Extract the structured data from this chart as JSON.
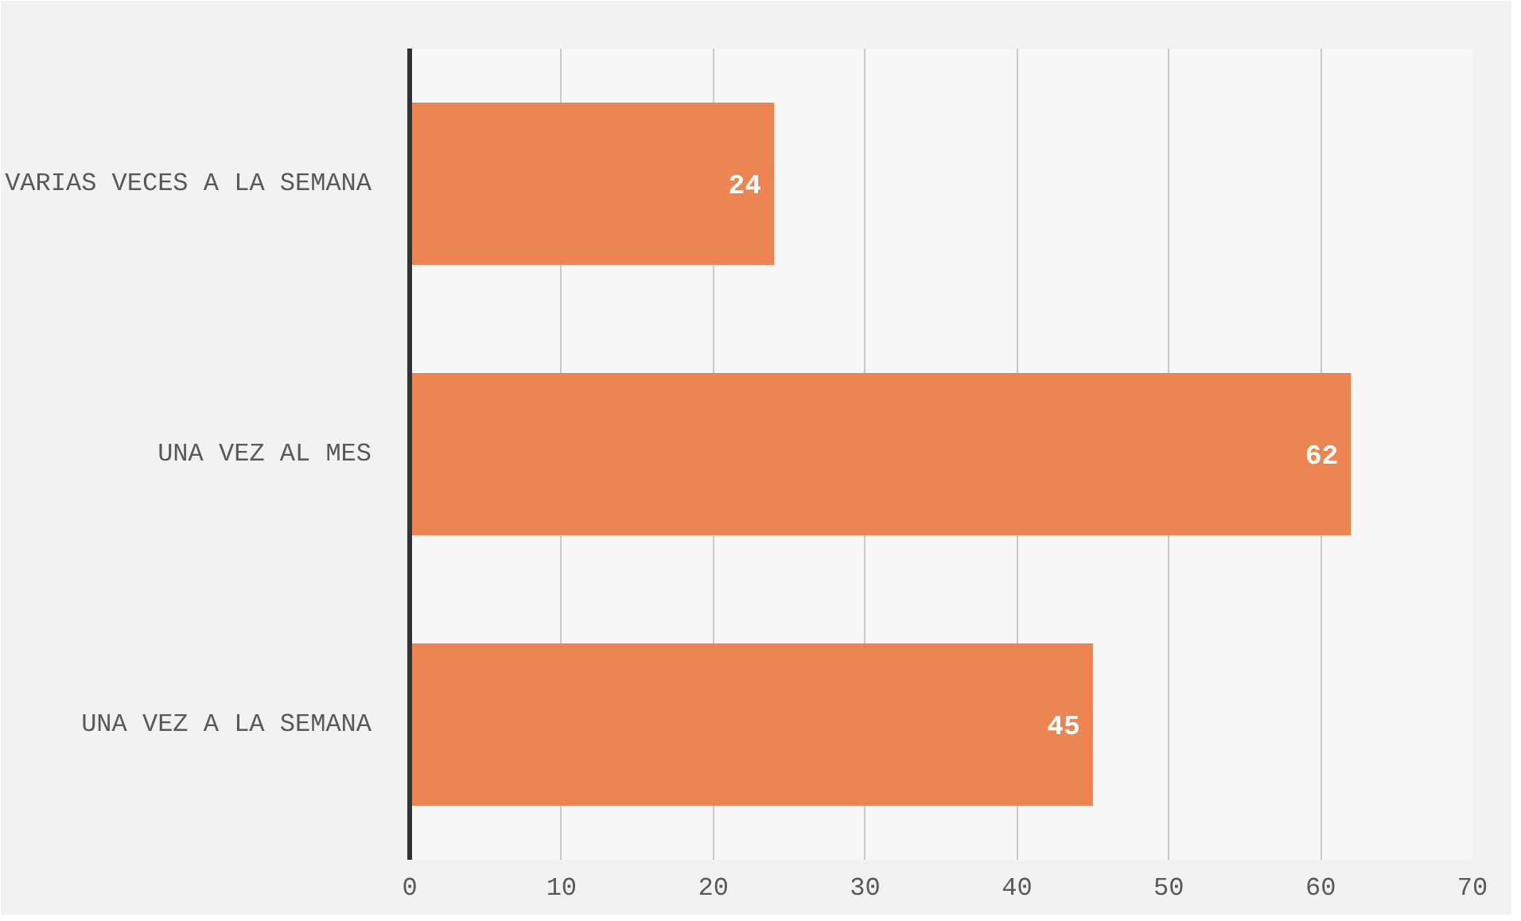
{
  "chart_data": {
    "type": "bar",
    "orientation": "horizontal",
    "categories": [
      "VARIAS VECES A LA SEMANA",
      "UNA VEZ AL MES",
      "UNA VEZ A LA SEMANA"
    ],
    "values": [
      24,
      62,
      45
    ],
    "color": "#ed8552",
    "xlim": [
      0,
      70
    ],
    "xticks": [
      0,
      10,
      20,
      30,
      40,
      50,
      60,
      70
    ],
    "grid": "x",
    "data_labels": true
  }
}
